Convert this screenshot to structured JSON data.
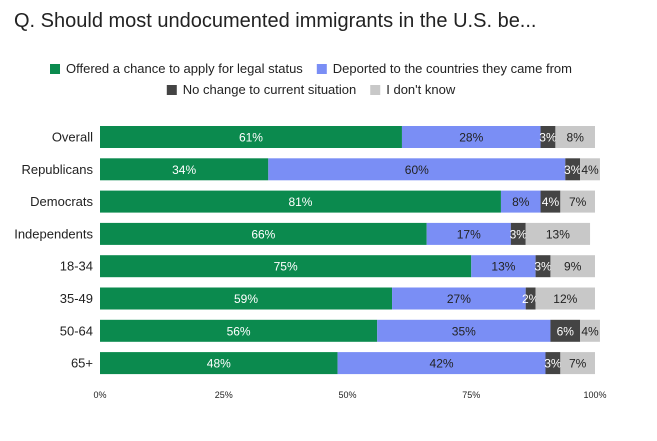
{
  "question": "Q. Should most undocumented immigrants in the U.S. be...",
  "chart_data": {
    "type": "bar",
    "orientation": "horizontal",
    "stacked": true,
    "title": "",
    "xlabel": "",
    "ylabel": "",
    "xlim": [
      0,
      100
    ],
    "x_ticks": [
      "0%",
      "25%",
      "50%",
      "75%",
      "100%"
    ],
    "legend_position": "top",
    "categories": [
      "Overall",
      "Republicans",
      "Democrats",
      "Independents",
      "18-34",
      "35-49",
      "50-64",
      "65+"
    ],
    "series": [
      {
        "name": "Offered a chance to apply for legal status",
        "color": "#0b8a4e",
        "label_color": "#ffffff",
        "values": [
          61,
          34,
          81,
          66,
          75,
          59,
          56,
          48
        ]
      },
      {
        "name": "Deported to the countries they came from",
        "color": "#7a8ef5",
        "label_color": "#222222",
        "values": [
          28,
          60,
          8,
          17,
          13,
          27,
          35,
          42
        ]
      },
      {
        "name": "No change to current situation",
        "color": "#444444",
        "label_color": "#ffffff",
        "values": [
          3,
          3,
          4,
          3,
          3,
          2,
          6,
          3
        ]
      },
      {
        "name": "I don't know",
        "color": "#c8c8c8",
        "label_color": "#222222",
        "values": [
          8,
          4,
          7,
          13,
          9,
          12,
          4,
          7
        ]
      }
    ]
  }
}
